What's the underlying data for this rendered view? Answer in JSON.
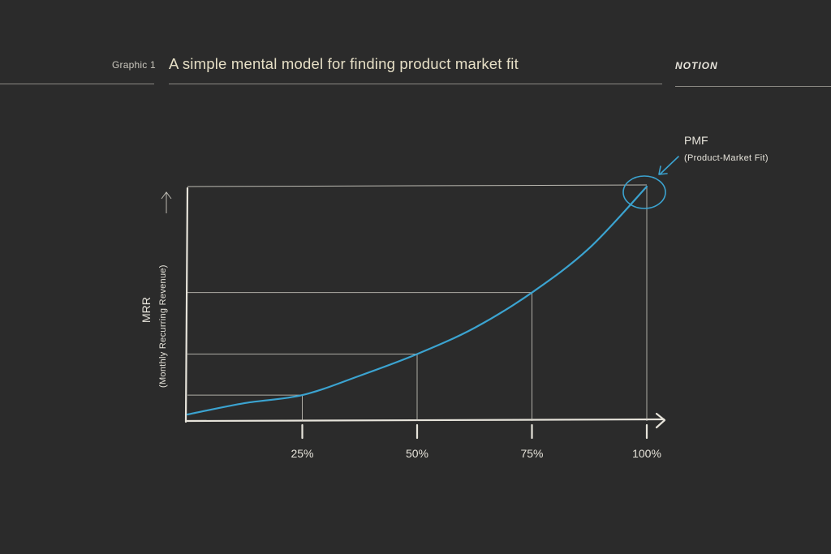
{
  "header": {
    "graphic_label": "Graphic 1",
    "title": "A simple mental model for finding product market fit",
    "brand": "NOTION"
  },
  "colors": {
    "background": "#2b2b2b",
    "chalk": "#e6e3da",
    "curve": "#3ba3d0",
    "title": "#e6dfc6"
  },
  "chart_data": {
    "type": "line",
    "title": "A simple mental model for finding product market fit",
    "xlabel": "",
    "ylabel": "MRR",
    "ylabel_sub": "(Monthly Recurring Revenue)",
    "x_ticks": [
      {
        "value": 25,
        "label": "25%"
      },
      {
        "value": 50,
        "label": "50%"
      },
      {
        "value": 75,
        "label": "75%"
      },
      {
        "value": 100,
        "label": "100%"
      }
    ],
    "xlim": [
      0,
      100
    ],
    "ylim": [
      0,
      100
    ],
    "grid": false,
    "series": [
      {
        "x": [
          0,
          12.5,
          25,
          37.5,
          50,
          62.5,
          75,
          87.5,
          100
        ],
        "y": [
          0,
          5,
          8.5,
          17,
          26.5,
          38,
          53.5,
          73,
          100
        ]
      }
    ],
    "guides": [
      {
        "x": 25,
        "y": 8.5
      },
      {
        "x": 50,
        "y": 26.5
      },
      {
        "x": 75,
        "y": 53.5
      },
      {
        "x": 100,
        "y": 100
      }
    ],
    "annotation": {
      "label": "PMF",
      "sublabel": "(Product-Market Fit)",
      "x": 100,
      "y": 100
    }
  }
}
